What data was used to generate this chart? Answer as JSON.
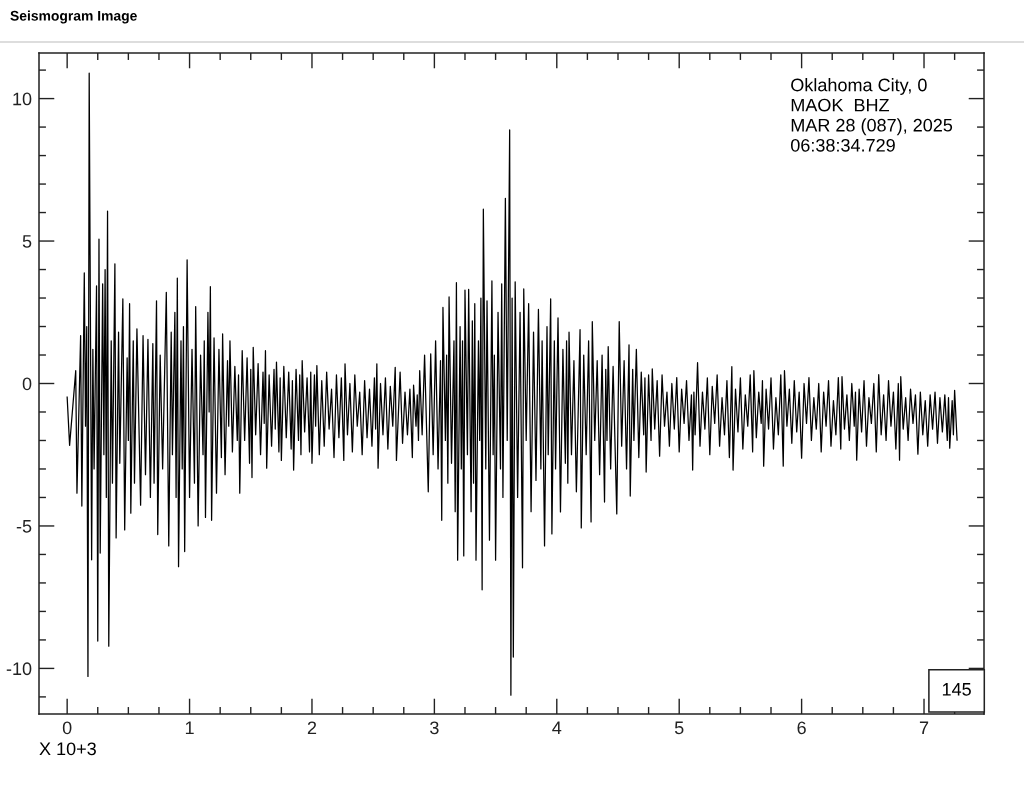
{
  "chart_data": {
    "type": "line",
    "title": "Seismogram Image",
    "xlabel": "X 10+3",
    "annotations": [
      "Oklahoma City, 0\nMAOK  BHZ\nMAR 28 (087), 2025\n06:38:34.729",
      "145"
    ],
    "xlim": [
      -0.23,
      7.49
    ],
    "ylim": [
      -11.6,
      11.6
    ],
    "xticks": [
      0,
      {
        "value": 0.25,
        "label": null
      },
      {
        "value": 0.5,
        "label": null
      },
      {
        "value": 0.75,
        "label": null
      },
      1,
      {
        "value": 1.25,
        "label": null
      },
      {
        "value": 1.5,
        "label": null
      },
      {
        "value": 1.75,
        "label": null
      },
      2,
      {
        "value": 2.25,
        "label": null
      },
      {
        "value": 2.5,
        "label": null
      },
      {
        "value": 2.75,
        "label": null
      },
      3,
      {
        "value": 3.25,
        "label": null
      },
      {
        "value": 3.5,
        "label": null
      },
      {
        "value": 3.75,
        "label": null
      },
      4,
      {
        "value": 4.25,
        "label": null
      },
      {
        "value": 4.5,
        "label": null
      },
      {
        "value": 4.75,
        "label": null
      },
      5,
      {
        "value": 5.25,
        "label": null
      },
      {
        "value": 5.5,
        "label": null
      },
      {
        "value": 5.75,
        "label": null
      },
      6,
      {
        "value": 6.25,
        "label": null
      },
      {
        "value": 6.5,
        "label": null
      },
      {
        "value": 6.75,
        "label": null
      },
      7,
      {
        "value": 7.25,
        "label": null
      }
    ],
    "yticks": [
      {
        "value": -11,
        "label": null
      },
      -10,
      {
        "value": -9,
        "label": null
      },
      {
        "value": -8,
        "label": null
      },
      {
        "value": -7,
        "label": null
      },
      {
        "value": -6,
        "label": null
      },
      -5,
      {
        "value": -4,
        "label": null
      },
      {
        "value": -3,
        "label": null
      },
      {
        "value": -2,
        "label": null
      },
      {
        "value": -1,
        "label": null
      },
      0,
      {
        "value": 1,
        "label": null
      },
      {
        "value": 2,
        "label": null
      },
      {
        "value": 3,
        "label": null
      },
      {
        "value": 4,
        "label": null
      },
      5,
      {
        "value": 6,
        "label": null
      },
      {
        "value": 7,
        "label": null
      },
      {
        "value": 8,
        "label": null
      },
      {
        "value": 9,
        "label": null
      },
      10,
      {
        "value": 11,
        "label": null
      }
    ],
    "line_style": "solid",
    "series": [
      {
        "color": "#000000",
        "x": [
          0.0,
          0.02,
          0.07,
          0.08,
          0.11,
          0.12,
          0.14,
          0.15,
          0.16,
          0.17,
          0.18,
          0.2,
          0.21,
          0.22,
          0.24,
          0.25,
          0.26,
          0.27,
          0.29,
          0.3,
          0.31,
          0.32,
          0.33,
          0.34,
          0.36,
          0.37,
          0.39,
          0.4,
          0.42,
          0.43,
          0.455,
          0.47,
          0.49,
          0.5,
          0.51,
          0.52,
          0.54,
          0.55,
          0.57,
          0.6,
          0.62,
          0.64,
          0.66,
          0.68,
          0.7,
          0.71,
          0.73,
          0.74,
          0.76,
          0.78,
          0.81,
          0.83,
          0.85,
          0.86,
          0.88,
          0.89,
          0.9,
          0.91,
          0.93,
          0.94,
          0.95,
          0.96,
          0.98,
          1.0,
          1.02,
          1.04,
          1.05,
          1.07,
          1.09,
          1.11,
          1.12,
          1.13,
          1.15,
          1.16,
          1.17,
          1.18,
          1.2,
          1.22,
          1.24,
          1.26,
          1.27,
          1.29,
          1.31,
          1.32,
          1.33,
          1.35,
          1.37,
          1.39,
          1.4,
          1.41,
          1.43,
          1.45,
          1.47,
          1.49,
          1.5,
          1.51,
          1.52,
          1.54,
          1.56,
          1.58,
          1.6,
          1.61,
          1.62,
          1.63,
          1.65,
          1.67,
          1.69,
          1.7,
          1.71,
          1.73,
          1.74,
          1.75,
          1.77,
          1.79,
          1.81,
          1.83,
          1.84,
          1.85,
          1.87,
          1.89,
          1.9,
          1.91,
          1.92,
          1.94,
          1.96,
          1.98,
          1.99,
          2.0,
          2.02,
          2.03,
          2.04,
          2.06,
          2.08,
          2.1,
          2.12,
          2.14,
          2.16,
          2.18,
          2.2,
          2.22,
          2.24,
          2.26,
          2.27,
          2.29,
          2.31,
          2.33,
          2.35,
          2.37,
          2.39,
          2.41,
          2.43,
          2.45,
          2.47,
          2.49,
          2.51,
          2.52,
          2.53,
          2.54,
          2.56,
          2.58,
          2.6,
          2.62,
          2.64,
          2.66,
          2.68,
          2.69,
          2.72,
          2.74,
          2.76,
          2.78,
          2.8,
          2.82,
          2.83,
          2.85,
          2.86,
          2.87,
          2.88,
          2.9,
          2.92,
          2.95,
          2.97,
          2.99,
          3.01,
          3.03,
          3.05,
          3.06,
          3.07,
          3.09,
          3.1,
          3.11,
          3.12,
          3.14,
          3.16,
          3.17,
          3.18,
          3.19,
          3.21,
          3.22,
          3.23,
          3.24,
          3.25,
          3.27,
          3.28,
          3.3,
          3.31,
          3.32,
          3.33,
          3.34,
          3.36,
          3.37,
          3.38,
          3.39,
          3.4,
          3.42,
          3.43,
          3.45,
          3.47,
          3.48,
          3.49,
          3.5,
          3.52,
          3.54,
          3.55,
          3.56,
          3.58,
          3.595,
          3.615,
          3.625,
          3.635,
          3.645,
          3.66,
          3.68,
          3.7,
          3.72,
          3.73,
          3.75,
          3.77,
          3.79,
          3.81,
          3.83,
          3.85,
          3.87,
          3.88,
          3.9,
          3.92,
          3.93,
          3.95,
          3.96,
          3.98,
          3.99,
          4.01,
          4.03,
          4.05,
          4.07,
          4.08,
          4.09,
          4.1,
          4.12,
          4.14,
          4.16,
          4.19,
          4.2,
          4.22,
          4.24,
          4.26,
          4.28,
          4.29,
          4.31,
          4.33,
          4.35,
          4.37,
          4.39,
          4.4,
          4.41,
          4.42,
          4.44,
          4.46,
          4.49,
          4.51,
          4.53,
          4.55,
          4.57,
          4.59,
          4.6,
          4.62,
          4.63,
          4.65,
          4.67,
          4.69,
          4.71,
          4.72,
          4.73,
          4.75,
          4.77,
          4.78,
          4.8,
          4.82,
          4.84,
          4.86,
          4.88,
          4.9,
          4.92,
          4.94,
          4.96,
          4.98,
          5.0,
          5.02,
          5.04,
          5.06,
          5.08,
          5.1,
          5.11,
          5.12,
          5.13,
          5.15,
          5.17,
          5.19,
          5.21,
          5.23,
          5.25,
          5.27,
          5.29,
          5.31,
          5.33,
          5.35,
          5.37,
          5.39,
          5.41,
          5.43,
          5.44,
          5.46,
          5.48,
          5.5,
          5.52,
          5.54,
          5.56,
          5.58,
          5.6,
          5.61,
          5.63,
          5.65,
          5.67,
          5.68,
          5.69,
          5.71,
          5.73,
          5.75,
          5.77,
          5.79,
          5.81,
          5.83,
          5.85,
          5.86,
          5.88,
          5.9,
          5.92,
          5.94,
          5.96,
          5.98,
          6.0,
          6.02,
          6.04,
          6.06,
          6.08,
          6.1,
          6.12,
          6.14,
          6.16,
          6.18,
          6.2,
          6.22,
          6.24,
          6.26,
          6.28,
          6.3,
          6.32,
          6.33,
          6.35,
          6.37,
          6.39,
          6.41,
          6.43,
          6.44,
          6.45,
          6.47,
          6.49,
          6.51,
          6.53,
          6.55,
          6.57,
          6.59,
          6.61,
          6.63,
          6.65,
          6.67,
          6.69,
          6.71,
          6.73,
          6.75,
          6.77,
          6.79,
          6.8,
          6.81,
          6.83,
          6.85,
          6.87,
          6.89,
          6.91,
          6.93,
          6.95,
          6.97,
          6.99,
          7.01,
          7.03,
          7.05,
          7.07,
          7.09,
          7.11,
          7.13,
          7.15,
          7.17,
          7.19,
          7.2,
          7.21,
          7.23,
          7.24,
          7.25,
          7.27
        ],
        "values": [
          -0.48,
          -2.17,
          0.45,
          -3.85,
          1.68,
          -4.3,
          3.88,
          -1.5,
          2.0,
          -10.28,
          10.89,
          -6.19,
          1.2,
          -3.0,
          3.43,
          -9.04,
          5.07,
          -5.95,
          3.5,
          -2.5,
          4.0,
          -4.0,
          6.05,
          -9.22,
          1.5,
          -3.5,
          4.2,
          -5.42,
          1.8,
          -2.8,
          2.97,
          -5.14,
          0.9,
          -2.0,
          2.8,
          -4.55,
          1.5,
          -3.5,
          1.92,
          -4.27,
          1.68,
          -3.2,
          1.55,
          -4.0,
          1.4,
          -3.5,
          2.9,
          -5.3,
          1.0,
          -3.0,
          3.2,
          -5.7,
          1.8,
          -2.5,
          2.5,
          -4.0,
          3.7,
          -6.43,
          1.5,
          -3.0,
          2.0,
          -5.9,
          4.34,
          -4.0,
          1.2,
          -3.5,
          2.7,
          -5.0,
          1.0,
          -2.5,
          1.5,
          -4.7,
          2.5,
          -1.0,
          3.4,
          -4.8,
          1.6,
          -3.85,
          1.2,
          -2.6,
          1.74,
          -3.2,
          0.8,
          -1.5,
          1.5,
          -2.4,
          0.6,
          -2.0,
          0.3,
          -3.85,
          1.15,
          -2.0,
          0.9,
          -2.8,
          0.5,
          -3.3,
          1.27,
          -1.8,
          0.7,
          -2.5,
          0.4,
          -1.4,
          1.15,
          -2.97,
          0.3,
          -2.2,
          0.5,
          -1.6,
          0.75,
          -2.4,
          0.2,
          -2.7,
          0.6,
          -1.9,
          0.4,
          -2.3,
          0.1,
          -3.04,
          0.5,
          -2.0,
          0.3,
          -2.5,
          0.8,
          -1.7,
          0.2,
          -2.4,
          0.4,
          -2.8,
          0.3,
          -1.5,
          0.63,
          -2.5,
          0.1,
          -2.2,
          0.4,
          -1.6,
          -0.2,
          -2.6,
          0.3,
          -1.9,
          0.2,
          -2.7,
          0.69,
          -1.8,
          0.0,
          -2.4,
          0.3,
          -1.5,
          -0.3,
          -2.5,
          0.1,
          -1.9,
          -0.2,
          -2.2,
          0.2,
          -1.6,
          0.69,
          -2.97,
          0.0,
          -1.8,
          0.2,
          -2.3,
          -0.1,
          -1.5,
          0.57,
          -2.7,
          0.4,
          -2.1,
          -0.3,
          -1.8,
          -0.2,
          -2.6,
          -0.06,
          -1.5,
          -0.4,
          -2.0,
          0.45,
          -1.8,
          1.0,
          -3.8,
          1.04,
          -2.5,
          1.5,
          -3.0,
          0.8,
          -4.8,
          2.67,
          -2.0,
          1.0,
          -3.5,
          3.04,
          -2.8,
          1.5,
          -4.5,
          3.54,
          -6.2,
          2.0,
          -3.0,
          1.5,
          -6.05,
          3.28,
          -2.5,
          3.3,
          -4.5,
          2.2,
          -3.5,
          2.8,
          -6.2,
          1.5,
          -2.0,
          3.0,
          -7.24,
          6.12,
          -3.0,
          2.9,
          -5.5,
          3.6,
          -2.5,
          1.0,
          -6.2,
          2.5,
          -3.0,
          3.5,
          -4.0,
          6.5,
          -2.0,
          8.9,
          -10.94,
          3.0,
          -9.6,
          3.57,
          -4.0,
          2.5,
          -6.47,
          3.32,
          -2.0,
          2.8,
          -4.5,
          1.8,
          -3.4,
          2.6,
          -3.0,
          1.5,
          -5.7,
          2.0,
          -2.5,
          2.97,
          -5.28,
          1.5,
          -3.0,
          2.3,
          -4.51,
          1.2,
          -2.8,
          1.5,
          -3.5,
          1.8,
          -2.5,
          0.8,
          -3.8,
          1.89,
          -5.07,
          1.0,
          -2.5,
          1.5,
          -4.86,
          2.17,
          -2.0,
          0.8,
          -3.2,
          1.0,
          -4.16,
          0.5,
          -2.0,
          1.29,
          -3.0,
          0.6,
          -4.58,
          2.17,
          -2.2,
          0.8,
          -3.0,
          1.36,
          -3.95,
          0.5,
          -2.0,
          1.2,
          -2.6,
          0.4,
          -1.8,
          0.2,
          -3.11,
          0.3,
          -2.0,
          0.51,
          -1.6,
          0.1,
          -2.55,
          0.3,
          -1.5,
          -0.3,
          -2.2,
          0.0,
          -1.6,
          0.21,
          -2.4,
          -0.2,
          -1.4,
          0.1,
          -2.0,
          -0.4,
          -3.04,
          -0.3,
          -1.8,
          0.73,
          -2.2,
          -0.3,
          -1.6,
          0.2,
          -2.5,
          -0.1,
          -1.4,
          0.3,
          -2.2,
          -0.5,
          -1.8,
          0.1,
          -2.6,
          0.59,
          -3.04,
          -0.2,
          -1.7,
          0.2,
          -2.3,
          -0.4,
          -1.5,
          0.3,
          -2.4,
          0.45,
          -1.9,
          -0.3,
          -1.4,
          0.1,
          -2.9,
          -0.2,
          -1.6,
          0.2,
          -2.3,
          -0.5,
          -1.8,
          0.3,
          -2.9,
          0.45,
          -1.5,
          -0.2,
          -2.1,
          0.1,
          -1.7,
          -0.3,
          -2.62,
          0.0,
          -1.4,
          0.21,
          -2.0,
          -0.5,
          -1.6,
          0.0,
          -2.4,
          -0.3,
          -1.5,
          0.1,
          -2.2,
          -0.6,
          -1.8,
          0.21,
          -2.3,
          0.24,
          -1.6,
          -0.4,
          -2.0,
          0.0,
          -1.5,
          -0.3,
          -2.69,
          -0.2,
          -1.7,
          0.1,
          -2.2,
          -0.5,
          -1.4,
          0.0,
          -2.4,
          0.31,
          -1.8,
          -0.4,
          -2.0,
          0.1,
          -1.5,
          -0.3,
          -2.3,
          0.0,
          -2.69,
          0.24,
          -1.6,
          -0.5,
          -2.0,
          -0.2,
          -1.4,
          -0.4,
          -2.48,
          -0.3,
          -1.8,
          -0.6,
          -2.2,
          -0.4,
          -1.6,
          -0.3,
          -2.1,
          -0.5,
          -1.7,
          -0.4,
          -2.0,
          -0.5,
          -2.27,
          -0.6,
          -1.8,
          -0.24,
          -1.99
        ]
      }
    ]
  }
}
